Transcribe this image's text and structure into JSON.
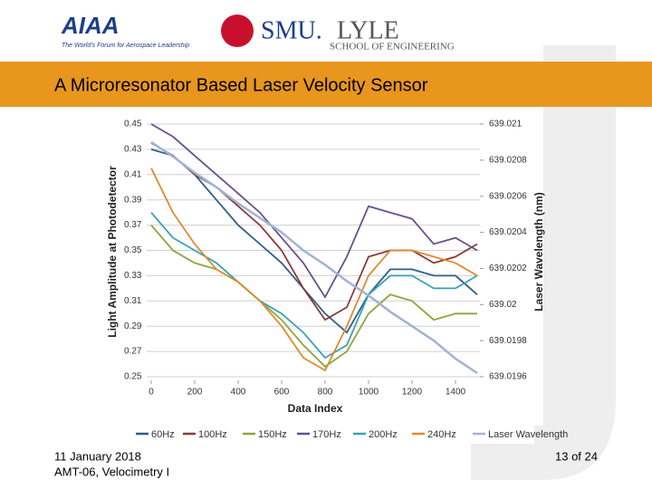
{
  "header": {
    "aiaa_logo": "AIAA",
    "aiaa_tagline": "The World's Forum for Aerospace Leadership",
    "smu_logo": "SMU.",
    "lyle_logo": "LYLE",
    "lyle_subtitle": "SCHOOL OF ENGINEERING"
  },
  "slide_title": "A Microresonator Based Laser Velocity Sensor",
  "chart_data": {
    "type": "line",
    "x_label": "Data Index",
    "y_label": "Light Amplitude at Photodetector",
    "y2_label": "Laser Wavelength (nm)",
    "x": [
      0,
      100,
      200,
      300,
      400,
      500,
      600,
      700,
      800,
      900,
      1000,
      1100,
      1200,
      1300,
      1400,
      1500
    ],
    "xlim": [
      0,
      1500
    ],
    "xticks": [
      0,
      200,
      400,
      600,
      800,
      1000,
      1200,
      1400
    ],
    "ylim": [
      0.25,
      0.45
    ],
    "yticks": [
      0.25,
      0.27,
      0.29,
      0.31,
      0.33,
      0.35,
      0.37,
      0.39,
      0.41,
      0.43,
      0.45
    ],
    "y2lim": [
      639.0196,
      639.021
    ],
    "y2ticks": [
      639.0196,
      639.0198,
      639.02,
      639.0202,
      639.0204,
      639.0206,
      639.0208,
      639.021
    ],
    "grid": true,
    "legend": "bottom",
    "series": [
      {
        "name": "60Hz",
        "color": "#2e5f8a",
        "values": [
          0.43,
          0.425,
          0.41,
          0.39,
          0.37,
          0.355,
          0.34,
          0.32,
          0.3,
          0.285,
          0.315,
          0.335,
          0.335,
          0.33,
          0.33,
          0.315
        ]
      },
      {
        "name": "100Hz",
        "color": "#8b3a3a",
        "values": [
          0.435,
          0.425,
          0.41,
          0.4,
          0.385,
          0.37,
          0.35,
          0.32,
          0.295,
          0.305,
          0.345,
          0.35,
          0.35,
          0.34,
          0.345,
          0.355
        ]
      },
      {
        "name": "150Hz",
        "color": "#8fa63c",
        "values": [
          0.37,
          0.35,
          0.34,
          0.335,
          0.325,
          0.31,
          0.295,
          0.275,
          0.258,
          0.27,
          0.3,
          0.315,
          0.31,
          0.295,
          0.3,
          0.3
        ]
      },
      {
        "name": "170Hz",
        "color": "#6a4f8f",
        "values": [
          0.45,
          0.44,
          0.425,
          0.41,
          0.395,
          0.38,
          0.36,
          0.34,
          0.313,
          0.345,
          0.385,
          0.38,
          0.375,
          0.355,
          0.36,
          0.35
        ]
      },
      {
        "name": "200Hz",
        "color": "#3aa0b8",
        "values": [
          0.38,
          0.36,
          0.35,
          0.34,
          0.325,
          0.31,
          0.3,
          0.285,
          0.265,
          0.275,
          0.315,
          0.33,
          0.33,
          0.32,
          0.32,
          0.33
        ]
      },
      {
        "name": "240Hz",
        "color": "#e08a2e",
        "values": [
          0.415,
          0.38,
          0.355,
          0.335,
          0.325,
          0.31,
          0.29,
          0.265,
          0.255,
          0.29,
          0.33,
          0.35,
          0.35,
          0.345,
          0.34,
          0.33
        ]
      },
      {
        "name": "Laser Wavelength",
        "color": "#9fb3d6",
        "axis": "y2",
        "values": [
          639.0209,
          639.02082,
          639.02073,
          639.02065,
          639.02056,
          639.02048,
          639.0204,
          639.0203,
          639.02022,
          639.02013,
          639.02005,
          639.01996,
          639.01988,
          639.0198,
          639.0197,
          639.01962
        ]
      }
    ]
  },
  "footer": {
    "date": "11 January 2018",
    "session": "AMT-06, Velocimetry I",
    "page": "13 of 24"
  }
}
